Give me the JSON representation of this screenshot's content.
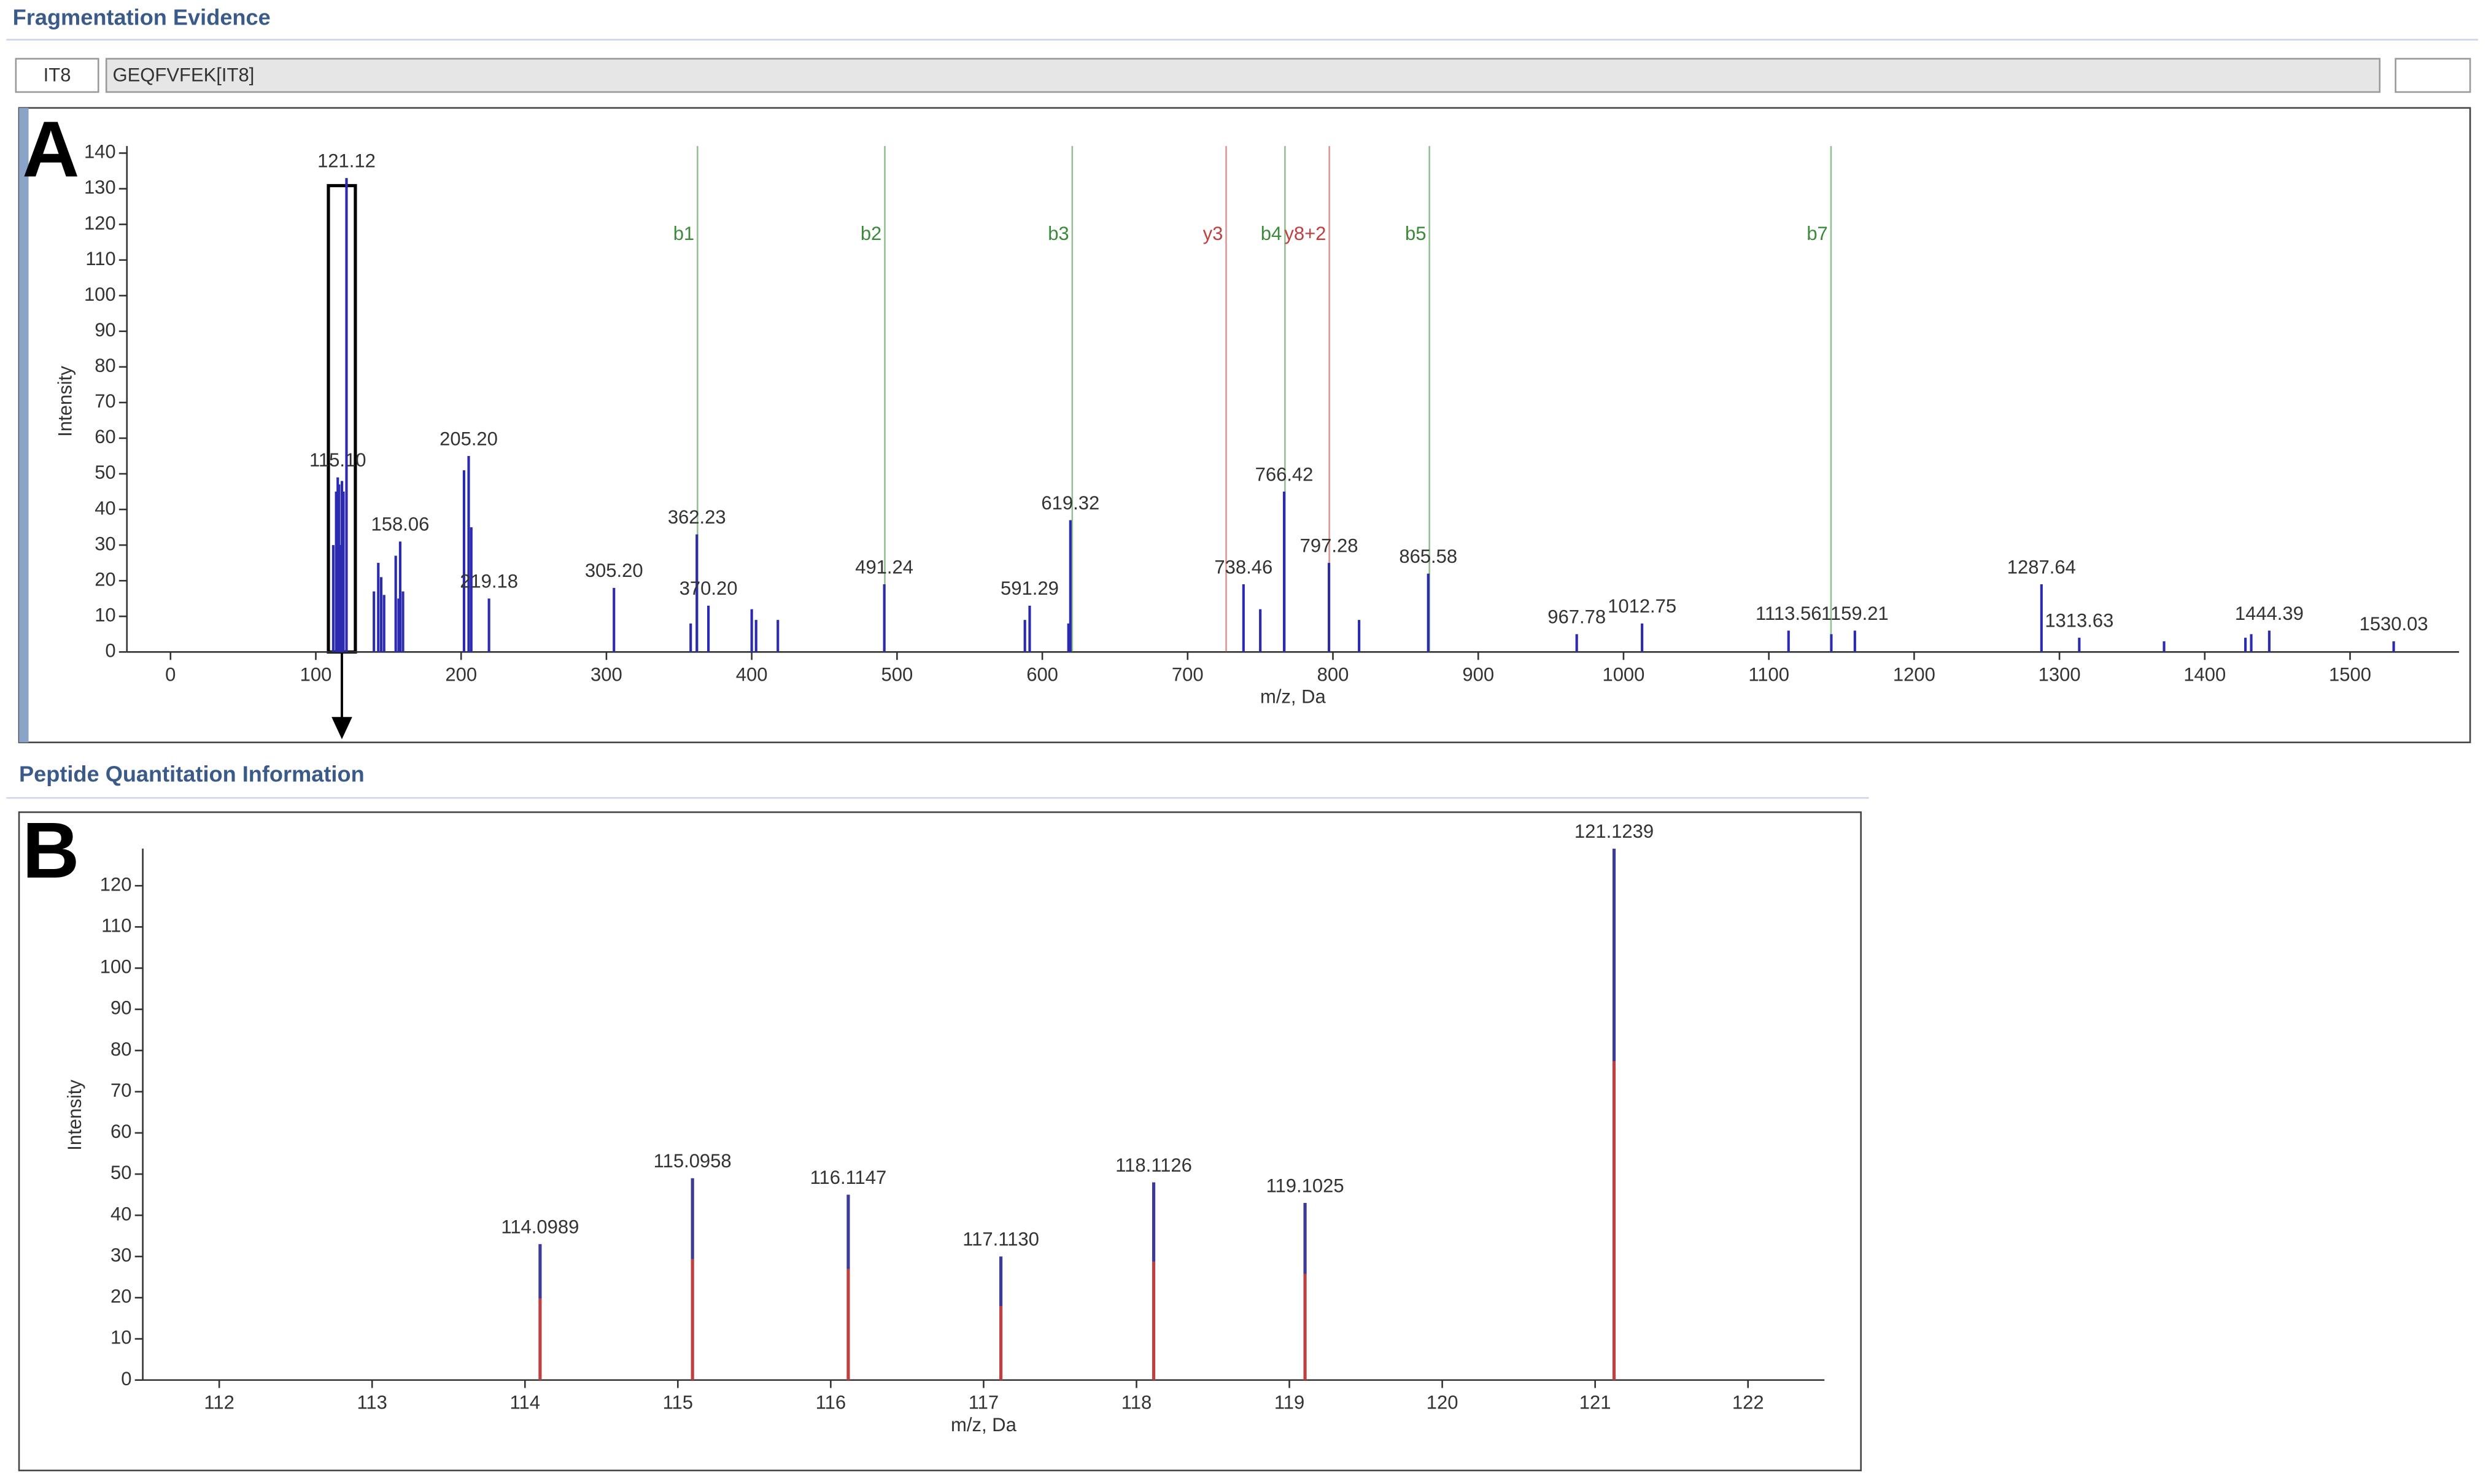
{
  "header": {
    "title": "Fragmentation Evidence",
    "tab": "IT8",
    "peptide": "GEQFVFEK[IT8]"
  },
  "section2": {
    "title": "Peptide Quantitation Information"
  },
  "chart_data": [
    {
      "type": "stem",
      "panel": "A",
      "x_label": "m/z, Da",
      "y_label": "Intensity",
      "xlim": [
        -30,
        1575
      ],
      "ylim": [
        0,
        142
      ],
      "xticks": [
        0,
        100,
        200,
        300,
        400,
        500,
        600,
        700,
        800,
        900,
        1000,
        1100,
        1200,
        1300,
        1400,
        1500
      ],
      "yticks": [
        0,
        10,
        20,
        30,
        40,
        50,
        60,
        70,
        80,
        90,
        100,
        110,
        120,
        130,
        140
      ],
      "color": "#2b2bb0",
      "x": [
        112,
        114,
        115.1,
        116,
        117,
        118,
        119,
        121.12,
        140,
        143,
        145,
        147,
        155,
        157,
        158.06,
        160,
        202,
        205.2,
        207,
        219.18,
        305.2,
        358,
        362.23,
        370.2,
        400,
        403,
        418,
        491.24,
        588,
        591.29,
        618,
        619.32,
        738.46,
        750,
        766.42,
        797.28,
        818,
        865.58,
        967.78,
        1012.75,
        1113.56,
        1143,
        1159.21,
        1287.64,
        1313.63,
        1372,
        1428,
        1432,
        1444.39,
        1530.03
      ],
      "values": [
        30,
        45,
        49,
        47,
        30,
        48,
        45,
        133,
        17,
        25,
        21,
        16,
        27,
        15,
        31,
        17,
        51,
        55,
        35,
        15,
        18,
        8,
        33,
        13,
        12,
        9,
        9,
        19,
        9,
        13,
        8,
        37,
        19,
        12,
        45,
        25,
        9,
        22,
        5,
        8,
        6,
        5,
        6,
        19,
        4,
        3,
        4,
        5,
        6,
        3
      ],
      "labels": [
        null,
        null,
        "115.10",
        null,
        null,
        null,
        null,
        "121.12",
        null,
        null,
        null,
        null,
        null,
        null,
        "158.06",
        null,
        null,
        "205.20",
        null,
        "219.18",
        "305.20",
        null,
        "362.23",
        "370.20",
        null,
        null,
        null,
        "491.24",
        null,
        "591.29",
        null,
        "619.32",
        "738.46",
        null,
        "766.42",
        "797.28",
        null,
        "865.58",
        "967.78",
        "1012.75",
        "1113.56",
        null,
        "1159.21",
        "1287.64",
        "1313.63",
        null,
        null,
        null,
        "1444.39",
        "1530.03"
      ],
      "annotations": [
        {
          "label": "b1",
          "x": 362.7,
          "color": "#3a8a3a"
        },
        {
          "label": "b2",
          "x": 491.6,
          "color": "#3a8a3a"
        },
        {
          "label": "b3",
          "x": 620.6,
          "color": "#3a8a3a"
        },
        {
          "label": "y3",
          "x": 726.5,
          "color": "#c04040"
        },
        {
          "label": "b4",
          "x": 767,
          "color": "#3a8a3a"
        },
        {
          "label": "y8+2",
          "x": 797.5,
          "color": "#c04040"
        },
        {
          "label": "b5",
          "x": 866.4,
          "color": "#3a8a3a"
        },
        {
          "label": "b7",
          "x": 1142.8,
          "color": "#3a8a3a"
        }
      ]
    },
    {
      "type": "stem-gradient",
      "panel": "B",
      "x_label": "m/z, Da",
      "y_label": "Intensity",
      "xlim": [
        111.5,
        122.5
      ],
      "ylim": [
        0,
        129
      ],
      "xticks": [
        112,
        113,
        114,
        115,
        116,
        117,
        118,
        119,
        120,
        121,
        122
      ],
      "yticks": [
        0,
        10,
        20,
        30,
        40,
        50,
        60,
        70,
        80,
        90,
        100,
        110,
        120
      ],
      "color": "#3b3b9a",
      "base_color": "#c04040",
      "x": [
        114.0989,
        115.0958,
        116.1147,
        117.113,
        118.1126,
        119.1025,
        121.1239
      ],
      "values": [
        33,
        49,
        45,
        30,
        48,
        43,
        129
      ],
      "labels": [
        "114.0989",
        "115.0958",
        "116.1147",
        "117.1130",
        "118.1126",
        "119.1025",
        "121.1239"
      ]
    }
  ]
}
